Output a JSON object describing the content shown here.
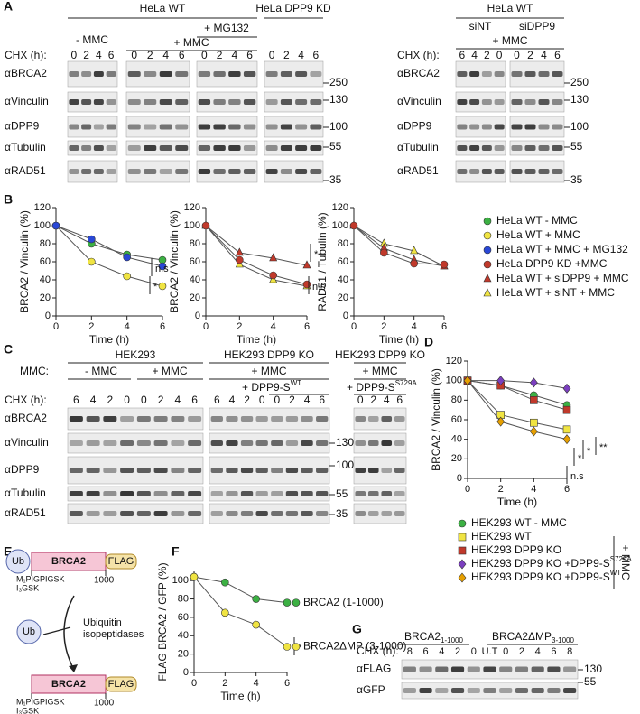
{
  "panel_letters": [
    "A",
    "B",
    "C",
    "D",
    "E",
    "F",
    "G"
  ],
  "panel_a": {
    "left": {
      "headers": [
        "HeLa WT",
        "HeLa DPP9 KD",
        "+ MG132",
        "- MMC",
        "+ MMC"
      ],
      "chx_label": "CHX (h):",
      "lanes": [
        [
          "0",
          "2",
          "4",
          "6"
        ],
        [
          "0",
          "2",
          "4",
          "6"
        ],
        [
          "0",
          "2",
          "4",
          "6"
        ],
        [
          "0",
          "2",
          "4",
          "6"
        ]
      ],
      "rows": [
        "αBRCA2",
        "αVinculin",
        "αDPP9",
        "αTubulin",
        "αRAD51"
      ],
      "mw": [
        "250",
        "130",
        "100",
        "55",
        "35"
      ]
    },
    "right": {
      "headers": [
        "HeLa WT",
        "siNT",
        "siDPP9",
        "+ MMC"
      ],
      "chx_label": "CHX (h):",
      "lanes": [
        [
          "6",
          "4",
          "2",
          "0"
        ],
        [
          "0",
          "2",
          "4",
          "6"
        ]
      ],
      "rows": [
        "αBRCA2",
        "αVinculin",
        "αDPP9",
        "αTubulin",
        "αRAD51"
      ],
      "mw": [
        "250",
        "130",
        "100",
        "55",
        "35"
      ]
    }
  },
  "chart_data": [
    {
      "type": "line",
      "ylabel": "BRCA2 / Vinculin (%)",
      "xlabel": "Time (h)",
      "x": [
        0,
        2,
        4,
        6
      ],
      "xlim": [
        0,
        6
      ],
      "xticks": [
        0,
        2,
        4,
        6
      ],
      "ylim": [
        0,
        120
      ],
      "yticks": [
        0,
        20,
        40,
        60,
        80,
        100,
        120
      ],
      "series": [
        {
          "color": "#3cb043",
          "marker": "circle",
          "values": [
            100,
            80,
            68,
            62
          ]
        },
        {
          "color": "#f0e442",
          "marker": "circle",
          "values": [
            100,
            60,
            44,
            33
          ]
        },
        {
          "color": "#2947d6",
          "marker": "circle",
          "values": [
            100,
            85,
            65,
            55
          ]
        }
      ],
      "annotations": [
        "n.s",
        "*"
      ]
    },
    {
      "type": "line",
      "ylabel": "BRCA2 / Vinculin (%)",
      "xlabel": "Time (h)",
      "x": [
        0,
        2,
        4,
        6
      ],
      "xlim": [
        0,
        6
      ],
      "xticks": [
        0,
        2,
        4,
        6
      ],
      "ylim": [
        0,
        120
      ],
      "yticks": [
        0,
        20,
        40,
        60,
        80,
        100,
        120
      ],
      "series": [
        {
          "color": "#c0392b",
          "marker": "triangle",
          "values": [
            100,
            70,
            64,
            56
          ]
        },
        {
          "color": "#f0e442",
          "marker": "triangle",
          "values": [
            100,
            57,
            40,
            33
          ]
        },
        {
          "color": "#c0392b",
          "marker": "circle",
          "values": [
            100,
            62,
            45,
            35
          ]
        }
      ],
      "annotations": [
        "*",
        "n.s"
      ]
    },
    {
      "type": "line",
      "ylabel": "RAD51 / Tubulin (%)",
      "xlabel": "Time (h)",
      "x": [
        0,
        2,
        4,
        6
      ],
      "xlim": [
        0,
        6
      ],
      "xticks": [
        0,
        2,
        4,
        6
      ],
      "ylim": [
        0,
        120
      ],
      "yticks": [
        0,
        20,
        40,
        60,
        80,
        100,
        120
      ],
      "series": [
        {
          "color": "#f0e442",
          "marker": "triangle",
          "values": [
            100,
            80,
            72,
            55
          ]
        },
        {
          "color": "#c0392b",
          "marker": "triangle",
          "values": [
            100,
            75,
            62,
            55
          ]
        },
        {
          "color": "#c0392b",
          "marker": "circle",
          "values": [
            100,
            70,
            58,
            57
          ]
        }
      ],
      "annotations": []
    },
    {
      "type": "line",
      "ylabel": "BRCA2 / Vinculin (%)",
      "xlabel": "Time (h)",
      "x": [
        0,
        2,
        4,
        6
      ],
      "xlim": [
        0,
        6
      ],
      "xticks": [
        0,
        2,
        4,
        6
      ],
      "ylim": [
        0,
        120
      ],
      "yticks": [
        0,
        20,
        40,
        60,
        80,
        100,
        120
      ],
      "series": [
        {
          "color": "#3cb043",
          "marker": "circle",
          "values": [
            100,
            95,
            85,
            75
          ]
        },
        {
          "color": "#f0e442",
          "marker": "square",
          "values": [
            100,
            65,
            57,
            50
          ]
        },
        {
          "color": "#c0392b",
          "marker": "square",
          "values": [
            100,
            95,
            80,
            70
          ]
        },
        {
          "color": "#7b3fbf",
          "marker": "diamond",
          "values": [
            100,
            100,
            98,
            92
          ]
        },
        {
          "color": "#e69f00",
          "marker": "diamond",
          "values": [
            100,
            58,
            48,
            40
          ]
        }
      ],
      "annotations": [
        "*",
        "*",
        "**",
        "n.s"
      ]
    },
    {
      "type": "line",
      "ylabel": "FLAG BRCA2 / GFP (%)",
      "xlabel": "Time (h)",
      "x": [
        0,
        2,
        4,
        6
      ],
      "xlim": [
        0,
        6
      ],
      "xticks": [
        0,
        2,
        4,
        6
      ],
      "ylim": [
        0,
        110
      ],
      "yticks": [
        0,
        20,
        40,
        60,
        80,
        100
      ],
      "series": [
        {
          "name": "BRCA2 (1-1000)",
          "color": "#3cb043",
          "marker": "circle",
          "values": [
            104,
            98,
            80,
            76
          ]
        },
        {
          "name": "BRCA2ΔMP (3-1000)",
          "color": "#f0e442",
          "marker": "circle",
          "values": [
            104,
            65,
            52,
            28
          ]
        }
      ],
      "annotations": [
        "*"
      ]
    }
  ],
  "legend_b": [
    {
      "name": "HeLa WT - MMC",
      "color": "#3cb043",
      "marker": "circle"
    },
    {
      "name": "HeLa WT + MMC",
      "color": "#f0e442",
      "marker": "circle"
    },
    {
      "name": "HeLa WT + MMC + MG132",
      "color": "#2947d6",
      "marker": "circle"
    },
    {
      "name": "HeLa DPP9 KD  +MMC",
      "color": "#c0392b",
      "marker": "circle"
    },
    {
      "name": "HeLa WT + siDPP9 + MMC",
      "color": "#c0392b",
      "marker": "triangle"
    },
    {
      "name": "HeLa WT + siNT + MMC",
      "color": "#f0e442",
      "marker": "triangle"
    }
  ],
  "panel_c": {
    "headers": [
      "HEK293",
      "HEK293 DPP9 KO",
      "HEK293 DPP9 KO"
    ],
    "mmc_label": "MMC:",
    "treatments": [
      "- MMC",
      "+ MMC",
      "+ MMC",
      "+ MMC"
    ],
    "rescue": [
      {
        "text": "+ DPP9-S",
        "sup": "WT"
      },
      {
        "text": "+ DPP9-S",
        "sup": "S729A"
      }
    ],
    "chx_label": "CHX (h):",
    "lanes": [
      [
        "6",
        "4",
        "2",
        "0",
        "0",
        "2",
        "4",
        "6"
      ],
      [
        "6",
        "4",
        "2",
        "0",
        "0",
        "2",
        "4",
        "6"
      ],
      [
        "0",
        "2",
        "4",
        "6"
      ]
    ],
    "rows": [
      "αBRCA2",
      "αVinculin",
      "αDPP9",
      "αTubulin",
      "αRAD51"
    ],
    "mw": [
      "130",
      "100",
      "55",
      "35"
    ]
  },
  "legend_d": {
    "entries": [
      {
        "name": "HEK293 WT - MMC",
        "color": "#3cb043",
        "marker": "circle"
      },
      {
        "name": "HEK293 WT",
        "color": "#f0e442",
        "marker": "square"
      },
      {
        "name": "HEK293 DPP9 KO",
        "color": "#c0392b",
        "marker": "square"
      },
      {
        "name": "HEK293 DPP9 KO +DPP9-S",
        "sup": "S729A",
        "color": "#7b3fbf",
        "marker": "diamond"
      },
      {
        "name": "HEK293 DPP9 KO +DPP9-S",
        "sup": "WT",
        "color": "#e69f00",
        "marker": "diamond"
      }
    ],
    "bracket": "+ MMC"
  },
  "panel_e": {
    "ub": "Ub",
    "protein": "BRCA2",
    "tag": "FLAG",
    "seq1": "M₁PIGPIGSK",
    "seq2": "I₃GSK",
    "end": "1000",
    "enzyme": [
      "Ubiquitin",
      "isopeptidases"
    ]
  },
  "panel_g": {
    "headers": [
      {
        "text": "BRCA2",
        "sub": "1-1000"
      },
      {
        "text": "BRCA2ΔMP",
        "sub": "3-1000"
      }
    ],
    "chx_label": "CHX (h):",
    "lanes": [
      "8",
      "6",
      "4",
      "2",
      "0",
      "U.T",
      "0",
      "2",
      "4",
      "6",
      "8"
    ],
    "rows": [
      "αFLAG",
      "αGFP"
    ],
    "mw": [
      "130",
      "55"
    ]
  }
}
